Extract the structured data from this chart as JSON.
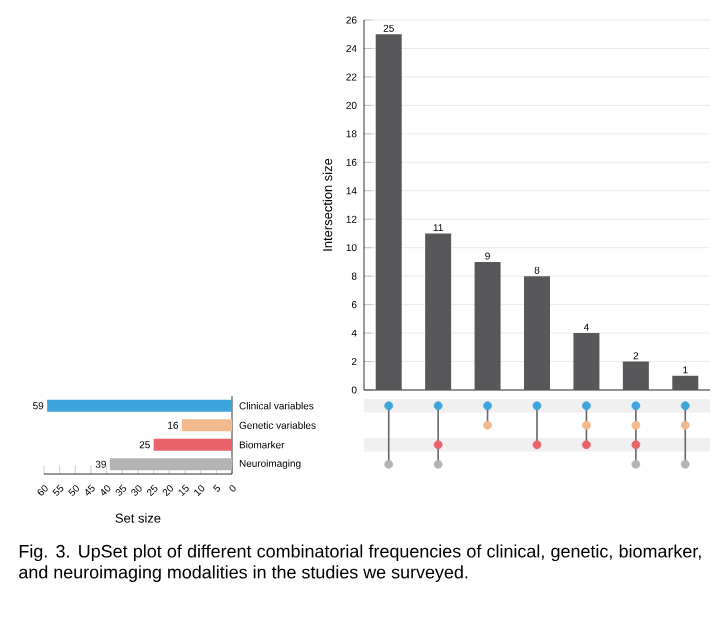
{
  "chart_data": [
    {
      "type": "bar",
      "categories": [
        null,
        null,
        null,
        null,
        null,
        null,
        null
      ],
      "values": [
        25,
        11,
        9,
        8,
        4,
        2,
        1
      ],
      "color": "#58585a",
      "ylim": [
        0,
        26
      ],
      "yticks": [
        0,
        2,
        4,
        6,
        8,
        10,
        12,
        14,
        16,
        18,
        20,
        22,
        24,
        26
      ],
      "ylabel": "Intersection size",
      "grid": "y",
      "data_labels": true,
      "annotations": [
        "Fig. 3.  UpSet plot of different combinatorial frequencies of clinical, genetic, biomarker, and neuroimaging modalities in the studies we surveyed."
      ]
    },
    {
      "type": "bar",
      "orientation": "horizontal",
      "categories": [
        "Clinical variables",
        "Genetic variables",
        "Biomarker",
        "Neuroimaging"
      ],
      "values": [
        59,
        16,
        25,
        39
      ],
      "colors": [
        "#3ea6dc",
        "#f2b98c",
        "#e8636a",
        "#b4b4b4"
      ],
      "xlim": [
        60,
        0
      ],
      "xticks": [
        60,
        55,
        50,
        45,
        40,
        35,
        30,
        25,
        20,
        15,
        10,
        5,
        0
      ],
      "xlabel": "Set size",
      "data_labels": true
    }
  ]
}
